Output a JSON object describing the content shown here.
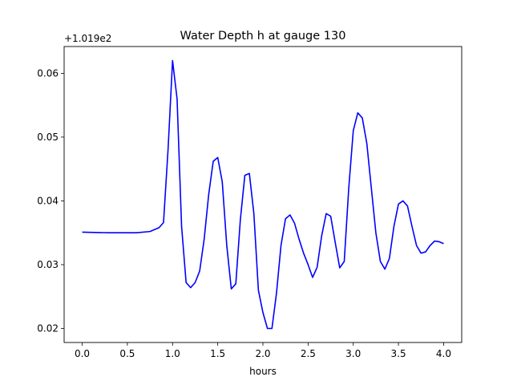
{
  "chart_data": {
    "type": "line",
    "title": "Water Depth h at gauge 130",
    "xlabel": "hours",
    "ylabel": "",
    "y_offset_text": "+1.019e2",
    "xlim": [
      -0.2,
      4.2
    ],
    "ylim": [
      0.0178,
      0.0642
    ],
    "x_ticks": [
      0.0,
      0.5,
      1.0,
      1.5,
      2.0,
      2.5,
      3.0,
      3.5,
      4.0
    ],
    "x_tick_labels": [
      "0.0",
      "0.5",
      "1.0",
      "1.5",
      "2.0",
      "2.5",
      "3.0",
      "3.5",
      "4.0"
    ],
    "y_ticks": [
      0.02,
      0.03,
      0.04,
      0.05,
      0.06
    ],
    "y_tick_labels": [
      "0.02",
      "0.03",
      "0.04",
      "0.05",
      "0.06"
    ],
    "grid": false,
    "series": [
      {
        "color": "#0000ff",
        "x": [
          0.0,
          0.3,
          0.6,
          0.75,
          0.85,
          0.9,
          0.95,
          1.0,
          1.05,
          1.1,
          1.15,
          1.2,
          1.25,
          1.3,
          1.35,
          1.4,
          1.45,
          1.5,
          1.55,
          1.6,
          1.65,
          1.7,
          1.75,
          1.8,
          1.85,
          1.9,
          1.95,
          2.0,
          2.05,
          2.1,
          2.15,
          2.2,
          2.25,
          2.3,
          2.35,
          2.4,
          2.45,
          2.5,
          2.55,
          2.6,
          2.65,
          2.7,
          2.75,
          2.8,
          2.85,
          2.9,
          2.95,
          3.0,
          3.05,
          3.1,
          3.15,
          3.2,
          3.25,
          3.3,
          3.35,
          3.4,
          3.45,
          3.5,
          3.55,
          3.6,
          3.65,
          3.7,
          3.75,
          3.8,
          3.85,
          3.9,
          3.95,
          4.0
        ],
        "y": [
          0.0351,
          0.035,
          0.035,
          0.0352,
          0.0358,
          0.0366,
          0.048,
          0.062,
          0.056,
          0.036,
          0.0272,
          0.0264,
          0.0272,
          0.029,
          0.034,
          0.041,
          0.0462,
          0.0468,
          0.043,
          0.033,
          0.0262,
          0.027,
          0.037,
          0.044,
          0.0443,
          0.038,
          0.026,
          0.0225,
          0.02,
          0.02,
          0.0255,
          0.033,
          0.0372,
          0.0378,
          0.0365,
          0.034,
          0.0318,
          0.03,
          0.028,
          0.0296,
          0.0345,
          0.038,
          0.0376,
          0.0335,
          0.0295,
          0.0305,
          0.042,
          0.051,
          0.0538,
          0.053,
          0.049,
          0.042,
          0.035,
          0.0305,
          0.0293,
          0.031,
          0.036,
          0.0395,
          0.04,
          0.0392,
          0.036,
          0.033,
          0.0318,
          0.032,
          0.033,
          0.0337,
          0.0336,
          0.0333
        ]
      }
    ]
  }
}
